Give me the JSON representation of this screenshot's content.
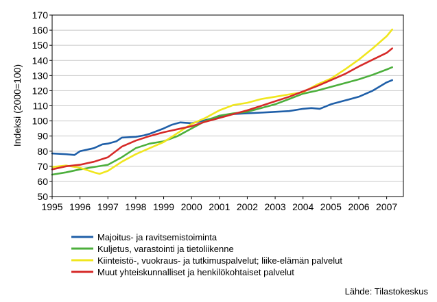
{
  "chart_data": {
    "type": "line",
    "ylabel": "Indeksi (2000=100)",
    "ylim": [
      50,
      170
    ],
    "yticks": [
      "50",
      "60",
      "70",
      "80",
      "90",
      "100",
      "110",
      "120",
      "130",
      "140",
      "150",
      "160",
      "170"
    ],
    "xlim": [
      1995,
      2007.6
    ],
    "xticks": [
      "1995",
      "1996",
      "1997",
      "1998",
      "1999",
      "2000",
      "2001",
      "2002",
      "2003",
      "2004",
      "2005",
      "2006",
      "2007"
    ],
    "grid": "horizontal",
    "legend_placement": "bottom",
    "source": "Lähde: Tilastokeskus",
    "series": [
      {
        "name": "Majoitus- ja ravitsemistoiminta",
        "color": "#1f5fa8",
        "x": [
          1995.0,
          1995.5,
          1995.8,
          1996.0,
          1996.5,
          1996.8,
          1997.0,
          1997.3,
          1997.5,
          1998.0,
          1998.3,
          1998.5,
          1999.0,
          1999.3,
          1999.6,
          2000.0,
          2000.5,
          2001.0,
          2001.5,
          2002.0,
          2002.5,
          2003.0,
          2003.5,
          2004.0,
          2004.3,
          2004.6,
          2005.0,
          2005.5,
          2006.0,
          2006.5,
          2007.0,
          2007.2
        ],
        "y": [
          78.5,
          78.0,
          77.5,
          80.0,
          82.0,
          84.5,
          85.0,
          86.5,
          89.0,
          89.5,
          90.5,
          91.5,
          95.0,
          97.5,
          99.0,
          98.5,
          100.5,
          103.0,
          104.5,
          105.0,
          105.5,
          106.0,
          106.5,
          108.0,
          108.5,
          108.0,
          111.0,
          113.5,
          116.0,
          120.0,
          125.5,
          127.0
        ]
      },
      {
        "name": "Kuljetus, varastointi ja tietoliikenne",
        "color": "#4caf3c",
        "x": [
          1995.0,
          1995.5,
          1996.0,
          1996.5,
          1997.0,
          1997.5,
          1998.0,
          1998.5,
          1999.0,
          1999.5,
          2000.0,
          2000.5,
          2001.0,
          2001.5,
          2002.0,
          2002.5,
          2003.0,
          2003.5,
          2004.0,
          2004.5,
          2005.0,
          2005.5,
          2006.0,
          2006.5,
          2007.0,
          2007.2
        ],
        "y": [
          64.5,
          66.0,
          68.0,
          69.5,
          71.0,
          76.0,
          82.0,
          85.0,
          86.5,
          90.0,
          95.0,
          100.0,
          103.5,
          105.0,
          106.0,
          108.5,
          111.0,
          114.5,
          118.0,
          120.0,
          122.5,
          125.0,
          127.5,
          130.5,
          134.0,
          135.5
        ]
      },
      {
        "name": "Kiinteistö-, vuokraus- ja tutkimuspalvelut; liike-elämän palvelut",
        "color": "#f0e61e",
        "x": [
          1995.0,
          1995.5,
          1996.0,
          1996.5,
          1996.7,
          1997.0,
          1997.5,
          1998.0,
          1998.5,
          1999.0,
          1999.5,
          2000.0,
          2000.5,
          2001.0,
          2001.5,
          2002.0,
          2002.5,
          2003.0,
          2003.5,
          2004.0,
          2004.5,
          2005.0,
          2005.5,
          2006.0,
          2006.5,
          2007.0,
          2007.2
        ],
        "y": [
          69.5,
          70.5,
          69.0,
          66.0,
          65.0,
          67.0,
          73.0,
          78.0,
          82.0,
          86.0,
          92.0,
          98.0,
          102.0,
          107.0,
          110.5,
          112.0,
          114.5,
          116.0,
          117.5,
          119.0,
          124.0,
          128.0,
          134.0,
          140.5,
          148.0,
          156.0,
          160.5
        ]
      },
      {
        "name": "Muut yhteiskunnalliset ja henkilökohtaiset palvelut",
        "color": "#d62a28",
        "x": [
          1995.0,
          1995.5,
          1996.0,
          1996.5,
          1997.0,
          1997.5,
          1998.0,
          1998.5,
          1999.0,
          1999.5,
          2000.0,
          2000.5,
          2001.0,
          2001.5,
          2002.0,
          2002.5,
          2003.0,
          2003.5,
          2004.0,
          2004.5,
          2005.0,
          2005.5,
          2006.0,
          2006.5,
          2007.0,
          2007.2
        ],
        "y": [
          68.0,
          70.0,
          71.0,
          73.0,
          76.0,
          83.0,
          87.0,
          90.0,
          92.5,
          94.5,
          96.5,
          99.5,
          102.0,
          104.5,
          107.0,
          110.0,
          113.0,
          116.0,
          119.5,
          123.0,
          127.0,
          131.0,
          136.0,
          140.5,
          145.0,
          148.0
        ]
      }
    ]
  }
}
